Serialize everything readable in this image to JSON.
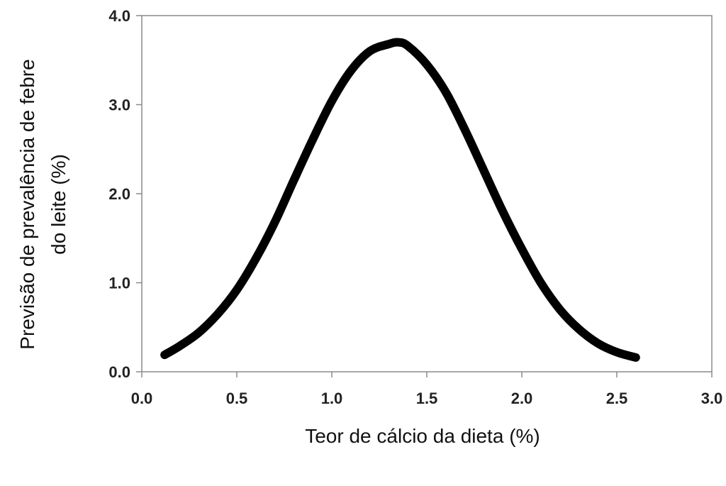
{
  "chart_data": {
    "type": "line",
    "title": "",
    "xlabel": "Teor de cálcio da dieta (%)",
    "ylabel_lines": [
      "Previsão de prevalência de febre",
      "do leite (%)"
    ],
    "xlim": [
      0.0,
      3.0
    ],
    "ylim": [
      0.0,
      4.0
    ],
    "xticks": [
      "0.0",
      "0.5",
      "1.0",
      "1.5",
      "2.0",
      "2.5",
      "3.0"
    ],
    "yticks": [
      "0.0",
      "1.0",
      "2.0",
      "3.0",
      "4.0"
    ],
    "grid": false,
    "legend": "none",
    "line_color": "#000000",
    "series": [
      {
        "x": [
          0.12,
          0.2,
          0.3,
          0.4,
          0.5,
          0.6,
          0.7,
          0.8,
          0.9,
          1.0,
          1.1,
          1.2,
          1.3,
          1.35,
          1.4,
          1.5,
          1.6,
          1.7,
          1.8,
          1.9,
          2.0,
          2.1,
          2.2,
          2.3,
          2.4,
          2.5,
          2.6
        ],
        "y": [
          0.19,
          0.29,
          0.44,
          0.65,
          0.92,
          1.27,
          1.68,
          2.15,
          2.61,
          3.04,
          3.38,
          3.6,
          3.68,
          3.7,
          3.66,
          3.45,
          3.14,
          2.72,
          2.26,
          1.8,
          1.38,
          1.0,
          0.7,
          0.48,
          0.32,
          0.22,
          0.16
        ]
      }
    ]
  }
}
